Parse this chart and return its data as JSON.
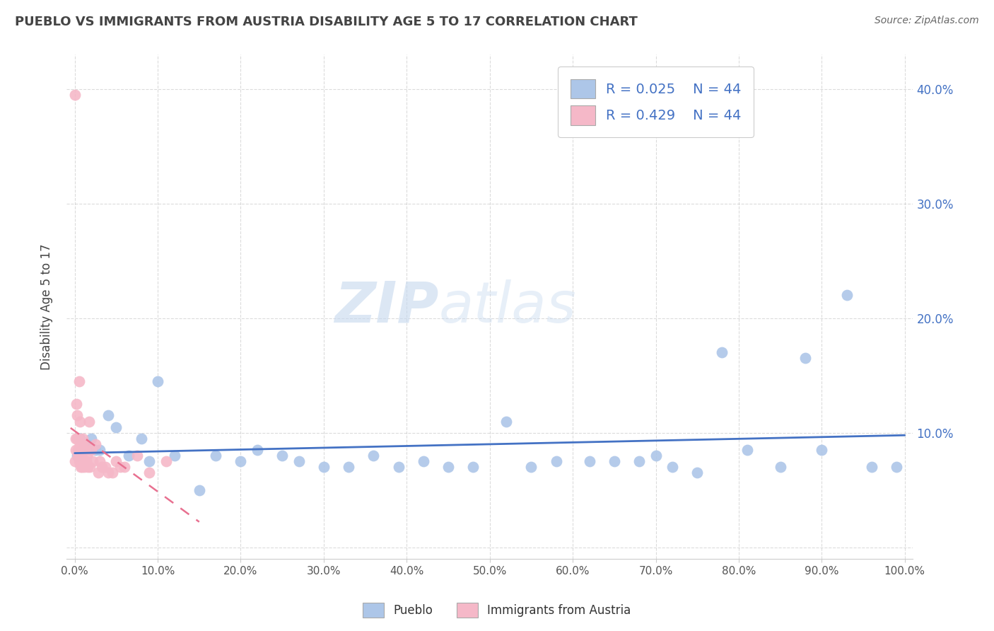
{
  "title": "PUEBLO VS IMMIGRANTS FROM AUSTRIA DISABILITY AGE 5 TO 17 CORRELATION CHART",
  "source": "Source: ZipAtlas.com",
  "ylabel": "Disability Age 5 to 17",
  "legend_labels": [
    "Pueblo",
    "Immigrants from Austria"
  ],
  "legend_r": [
    "R = 0.025",
    "N = 44"
  ],
  "legend_r2": [
    "R = 0.429",
    "N = 44"
  ],
  "blue_color": "#adc6e8",
  "pink_color": "#f5b8c8",
  "blue_line_color": "#4472c4",
  "pink_line_color": "#e87090",
  "watermark_zip": "ZIP",
  "watermark_atlas": "atlas",
  "xlim": [
    -1,
    101
  ],
  "ylim": [
    -1,
    43
  ],
  "xticks": [
    0,
    10,
    20,
    30,
    40,
    50,
    60,
    70,
    80,
    90,
    100
  ],
  "yticks": [
    0,
    10,
    20,
    30,
    40
  ],
  "xticklabels": [
    "0.0%",
    "10.0%",
    "20.0%",
    "30.0%",
    "40.0%",
    "50.0%",
    "60.0%",
    "70.0%",
    "80.0%",
    "90.0%",
    "100.0%"
  ],
  "yticklabels_right": [
    "",
    "10.0%",
    "20.0%",
    "30.0%",
    "40.0%"
  ],
  "grid_color": "#cccccc",
  "bg_color": "#ffffff",
  "pueblo_x": [
    0.3,
    0.6,
    0.9,
    1.5,
    2.0,
    2.5,
    3.0,
    4.0,
    5.0,
    6.5,
    8.0,
    9.0,
    10.0,
    12.0,
    15.0,
    17.0,
    20.0,
    22.0,
    25.0,
    27.0,
    30.0,
    33.0,
    36.0,
    39.0,
    42.0,
    45.0,
    48.0,
    52.0,
    55.0,
    58.0,
    62.0,
    65.0,
    68.0,
    70.0,
    72.0,
    75.0,
    78.0,
    81.0,
    85.0,
    88.0,
    90.0,
    93.0,
    96.0,
    99.0
  ],
  "pueblo_y": [
    8.0,
    9.5,
    8.5,
    9.0,
    9.5,
    8.5,
    8.5,
    11.5,
    10.5,
    8.0,
    9.5,
    7.5,
    14.5,
    8.0,
    5.0,
    8.0,
    7.5,
    8.5,
    8.0,
    7.5,
    7.0,
    7.0,
    8.0,
    7.0,
    7.5,
    7.0,
    7.0,
    11.0,
    7.0,
    7.5,
    7.5,
    7.5,
    7.5,
    8.0,
    7.0,
    6.5,
    17.0,
    8.5,
    7.0,
    16.5,
    8.5,
    22.0,
    7.0,
    7.0
  ],
  "austria_x": [
    0.05,
    0.1,
    0.15,
    0.2,
    0.25,
    0.3,
    0.35,
    0.4,
    0.45,
    0.5,
    0.55,
    0.6,
    0.65,
    0.7,
    0.75,
    0.8,
    0.85,
    0.9,
    0.95,
    1.0,
    1.1,
    1.2,
    1.3,
    1.4,
    1.5,
    1.6,
    1.7,
    1.8,
    2.0,
    2.2,
    2.5,
    2.8,
    3.0,
    3.3,
    3.7,
    4.0,
    4.5,
    5.0,
    5.5,
    6.0,
    7.5,
    9.0,
    11.0,
    0.03
  ],
  "austria_y": [
    7.5,
    9.5,
    8.5,
    12.5,
    9.5,
    11.5,
    8.5,
    8.0,
    9.5,
    14.5,
    7.5,
    9.0,
    11.0,
    7.0,
    8.0,
    8.0,
    7.0,
    9.0,
    9.5,
    7.5,
    7.0,
    8.5,
    9.0,
    7.5,
    8.0,
    7.0,
    11.0,
    7.0,
    8.5,
    7.5,
    9.0,
    6.5,
    7.5,
    7.0,
    7.0,
    6.5,
    6.5,
    7.5,
    7.0,
    7.0,
    8.0,
    6.5,
    7.5,
    39.5
  ],
  "tick_color": "#4472c4"
}
